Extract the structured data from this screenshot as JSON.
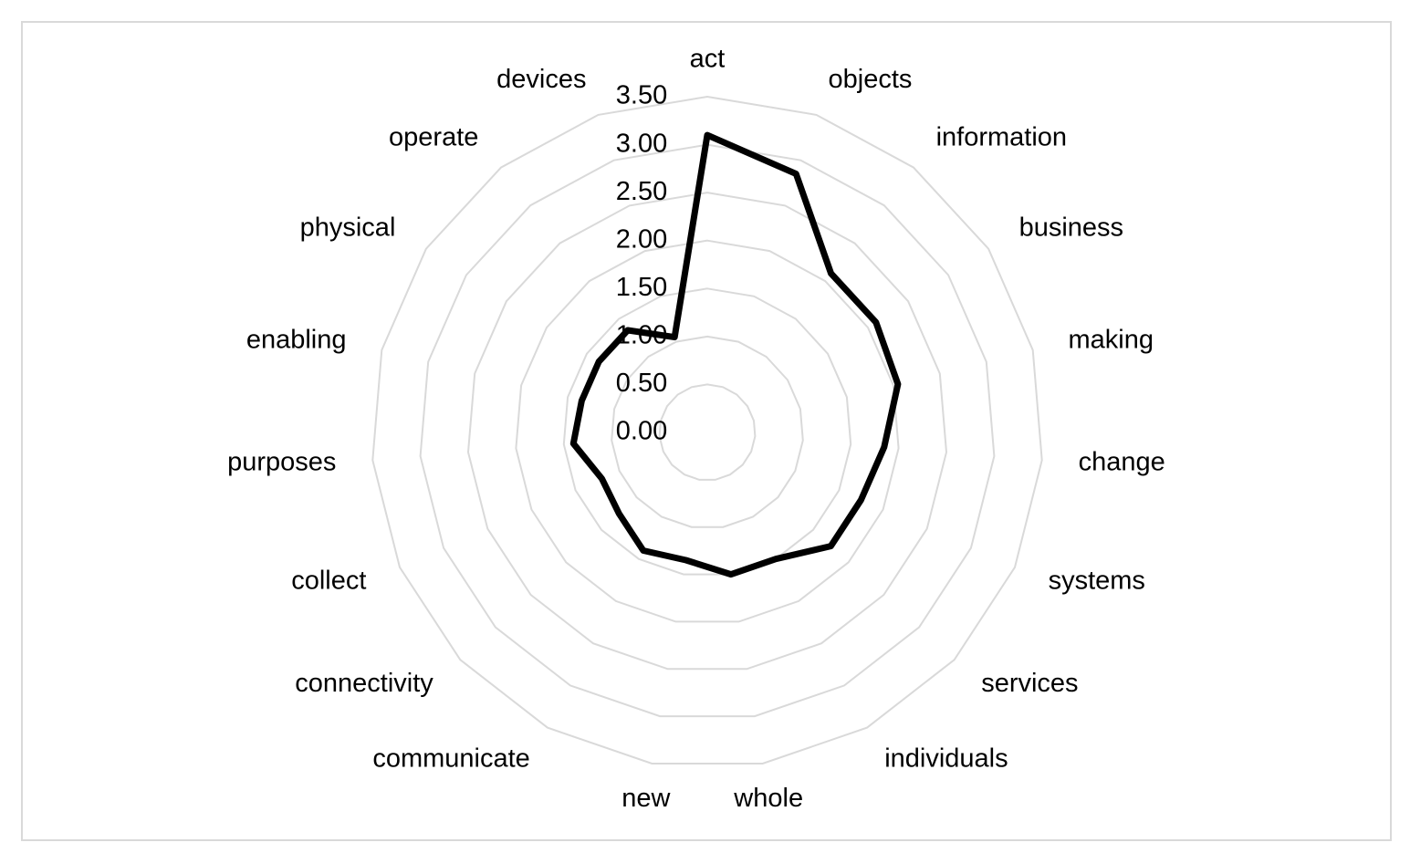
{
  "chart_data": {
    "type": "radar",
    "categories": [
      "act",
      "objects",
      "information",
      "business",
      "making",
      "change",
      "systems",
      "services",
      "individuals",
      "whole",
      "new",
      "communicate",
      "connectivity",
      "collect",
      "purposes",
      "enabling",
      "physical",
      "operate",
      "devices"
    ],
    "series": [
      {
        "values": [
          3.1,
          2.85,
          2.1,
          2.1,
          2.05,
          1.85,
          1.75,
          1.75,
          1.5,
          1.5,
          1.35,
          1.4,
          1.25,
          1.2,
          1.4,
          1.35,
          1.35,
          1.35,
          1.05
        ]
      }
    ],
    "rlim": [
      0,
      3.5
    ],
    "ticks": [
      "0.00",
      "0.50",
      "1.00",
      "1.50",
      "2.00",
      "2.50",
      "3.00",
      "3.50"
    ],
    "grid": true,
    "colors": {
      "series": "#000000",
      "grid": "#d9d9d9",
      "border": "#d9d9d9"
    }
  }
}
